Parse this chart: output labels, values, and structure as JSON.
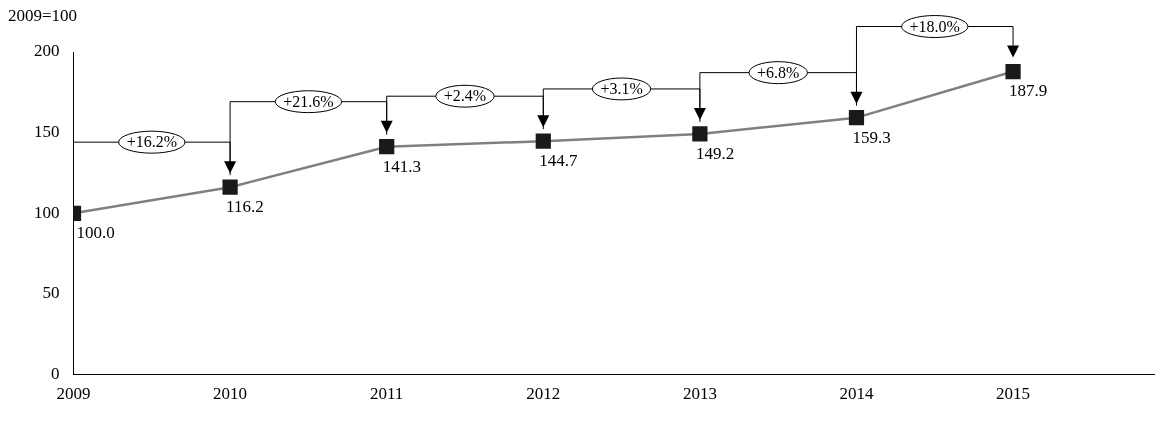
{
  "chart_data": {
    "type": "line",
    "ylabel": "2009=100",
    "x": [
      2009,
      2010,
      2011,
      2012,
      2013,
      2014,
      2015
    ],
    "xlim": [
      2009,
      2015.9
    ],
    "xticks": [
      2009,
      2010,
      2011,
      2012,
      2013,
      2014,
      2015
    ],
    "ylim": [
      0,
      200
    ],
    "yticks": [
      0,
      50,
      100,
      150,
      200
    ],
    "series": [
      {
        "color": "#808080",
        "values": [
          100.0,
          116.2,
          141.3,
          144.7,
          149.2,
          159.3,
          187.9
        ],
        "value_labels": [
          "100.0",
          "116.2",
          "141.3",
          "144.7",
          "149.2",
          "159.3",
          "187.9"
        ]
      }
    ],
    "marker": "square",
    "grid": false,
    "legend": false,
    "annotations": [
      "+16.2%",
      "+21.6%",
      "+2.4%",
      "+3.1%",
      "+6.8%",
      "+18.0%"
    ]
  }
}
